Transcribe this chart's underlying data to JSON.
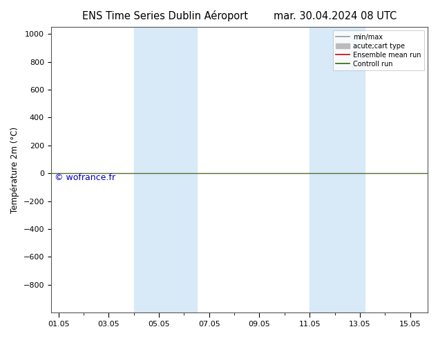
{
  "title_left": "ENS Time Series Dublin Aéroport",
  "title_right": "mar. 30.04.2024 08 UTC",
  "ylabel": "Température 2m (°C)",
  "watermark": "© wofrance.fr",
  "ylim_top": -1000,
  "ylim_bottom": 1050,
  "yticks": [
    -800,
    -600,
    -400,
    -200,
    0,
    200,
    400,
    600,
    800,
    1000
  ],
  "xtick_labels": [
    "01.05",
    "03.05",
    "05.05",
    "07.05",
    "09.05",
    "11.05",
    "13.05",
    "15.05"
  ],
  "xtick_positions": [
    0,
    2,
    4,
    6,
    8,
    10,
    12,
    14
  ],
  "xlim": [
    -0.3,
    14.7
  ],
  "bg_color": "#ffffff",
  "plot_bg_color": "#ffffff",
  "shaded_regions": [
    {
      "start": 3.0,
      "end": 5.5
    },
    {
      "start": 10.0,
      "end": 12.2
    }
  ],
  "shaded_color": "#d8eaf7",
  "horizontal_line_y": 0,
  "horizontal_line_color": "#556b2f",
  "horizontal_line_color2": "#cc0000",
  "legend_items": [
    {
      "label": "min/max",
      "color": "#999999",
      "linewidth": 1.2,
      "lw_patch": false
    },
    {
      "label": "acute;cart type",
      "color": "#bbbbbb",
      "linewidth": 5,
      "lw_patch": true
    },
    {
      "label": "Ensemble mean run",
      "color": "#cc0000",
      "linewidth": 1.2,
      "lw_patch": false
    },
    {
      "label": "Controll run",
      "color": "#336600",
      "linewidth": 1.2,
      "lw_patch": false
    }
  ],
  "title_fontsize": 10.5,
  "axis_label_fontsize": 8.5,
  "tick_fontsize": 8,
  "watermark_fontsize": 9,
  "watermark_color": "#0000bb"
}
